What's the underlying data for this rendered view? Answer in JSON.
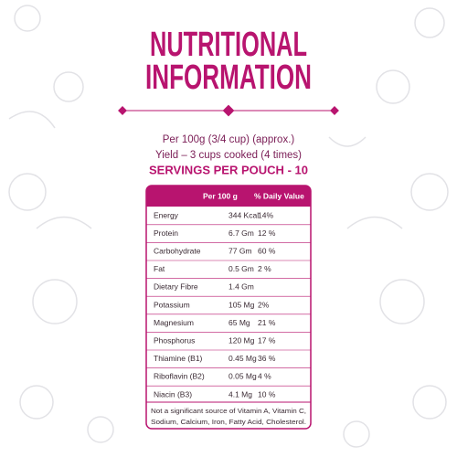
{
  "title": [
    "NUTRITIONAL",
    "INFORMATION"
  ],
  "serving": [
    "Per 100g (3/4 cup) (approx.)",
    "Yield – 3 cups cooked (4 times)"
  ],
  "servings_per_pouch": "SERVINGS PER POUCH - 10",
  "table": {
    "header": [
      "Per 100 g",
      "% Daily Value"
    ],
    "rows": [
      [
        "Energy",
        "344 Kcal",
        "14%"
      ],
      [
        "Protein",
        "6.7 Gm",
        "12 %"
      ],
      [
        "Carbohydrate",
        "77 Gm",
        "60 %"
      ],
      [
        "Fat",
        "0.5 Gm",
        "2 %"
      ],
      [
        "Dietary Fibre",
        "1.4 Gm"
      ],
      [
        "Potassium",
        "105 Mg",
        "2%"
      ],
      [
        "Magnesium",
        "65 Mg",
        "21 %"
      ],
      [
        "Phosphorus",
        "120 Mg",
        "17 %"
      ],
      [
        "Thiamine (B1)",
        "0.45 Mg",
        "36 %"
      ],
      [
        "Riboflavin (B2)",
        "0.05 Mg",
        "4 %"
      ],
      [
        "Niacin (B3)",
        "4.1 Mg",
        "10 %"
      ]
    ],
    "footnote": [
      "Not a significant source of Vitamin A, Vitamin C,",
      "Sodium, Calcium, Iron, Fatty Acid, Cholesterol."
    ]
  }
}
